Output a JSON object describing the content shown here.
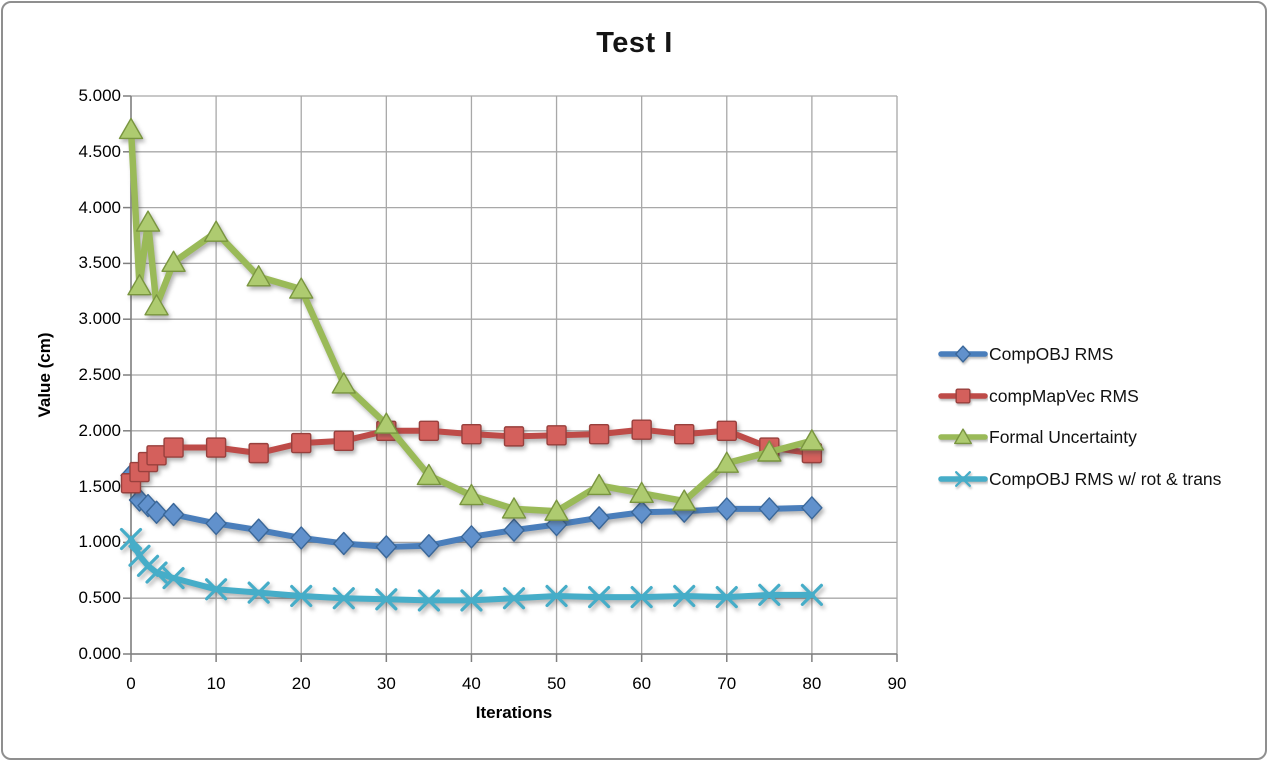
{
  "chart_data": {
    "type": "line",
    "title": "Test I",
    "xlabel": "Iterations",
    "ylabel": "Value (cm)",
    "xlim": [
      0,
      90
    ],
    "ylim": [
      0,
      5
    ],
    "grid": true,
    "legend_position": "right",
    "x_ticks": [
      0,
      10,
      20,
      30,
      40,
      50,
      60,
      70,
      80,
      90
    ],
    "x_tick_labels": [
      "0",
      "10",
      "20",
      "30",
      "40",
      "50",
      "60",
      "70",
      "80",
      "90"
    ],
    "y_ticks": [
      0,
      0.5,
      1,
      1.5,
      2,
      2.5,
      3,
      3.5,
      4,
      4.5,
      5
    ],
    "y_tick_labels": [
      "0.000",
      "0.500",
      "1.000",
      "1.500",
      "2.000",
      "2.500",
      "3.000",
      "3.500",
      "4.000",
      "4.500",
      "5.000"
    ],
    "gridline_color": "#A8A8A8",
    "axis_color": "#7F7F7F",
    "x": [
      0,
      1,
      2,
      3,
      5,
      10,
      15,
      20,
      25,
      30,
      35,
      40,
      45,
      50,
      55,
      60,
      65,
      70,
      75,
      80
    ],
    "series": [
      {
        "name": "CompOBJ RMS",
        "marker": "diamond",
        "color": "#4A7EBB",
        "marker_fill": "#6191CC",
        "marker_stroke": "#3A6799",
        "line_width": 6,
        "values": [
          1.6,
          1.38,
          1.33,
          1.27,
          1.25,
          1.17,
          1.11,
          1.04,
          0.99,
          0.96,
          0.97,
          1.05,
          1.11,
          1.16,
          1.22,
          1.27,
          1.28,
          1.3,
          1.3,
          1.31
        ]
      },
      {
        "name": "compMapVec RMS",
        "marker": "square",
        "color": "#BE4B48",
        "marker_fill": "#D4605C",
        "marker_stroke": "#98403D",
        "line_width": 6,
        "values": [
          1.53,
          1.63,
          1.72,
          1.78,
          1.85,
          1.85,
          1.8,
          1.89,
          1.91,
          2.0,
          2.0,
          1.97,
          1.95,
          1.96,
          1.97,
          2.01,
          1.97,
          2.0,
          1.85,
          1.8
        ]
      },
      {
        "name": "Formal Uncertainty",
        "marker": "triangle",
        "color": "#9ABA58",
        "marker_fill": "#AECB70",
        "marker_stroke": "#79953F",
        "line_width": 6.5,
        "values": [
          4.7,
          3.3,
          3.87,
          3.12,
          3.51,
          3.78,
          3.38,
          3.27,
          2.42,
          2.06,
          1.6,
          1.42,
          1.3,
          1.28,
          1.51,
          1.44,
          1.37,
          1.71,
          1.81,
          1.91
        ]
      },
      {
        "name": "CompOBJ RMS w/ rot & trans",
        "marker": "x",
        "color": "#46ADC8",
        "marker_fill": "#46ADC8",
        "marker_stroke": "#46ADC8",
        "line_width": 6,
        "values": [
          1.03,
          0.88,
          0.79,
          0.73,
          0.68,
          0.58,
          0.55,
          0.52,
          0.5,
          0.49,
          0.48,
          0.48,
          0.5,
          0.52,
          0.51,
          0.51,
          0.52,
          0.51,
          0.53,
          0.53
        ]
      }
    ]
  }
}
